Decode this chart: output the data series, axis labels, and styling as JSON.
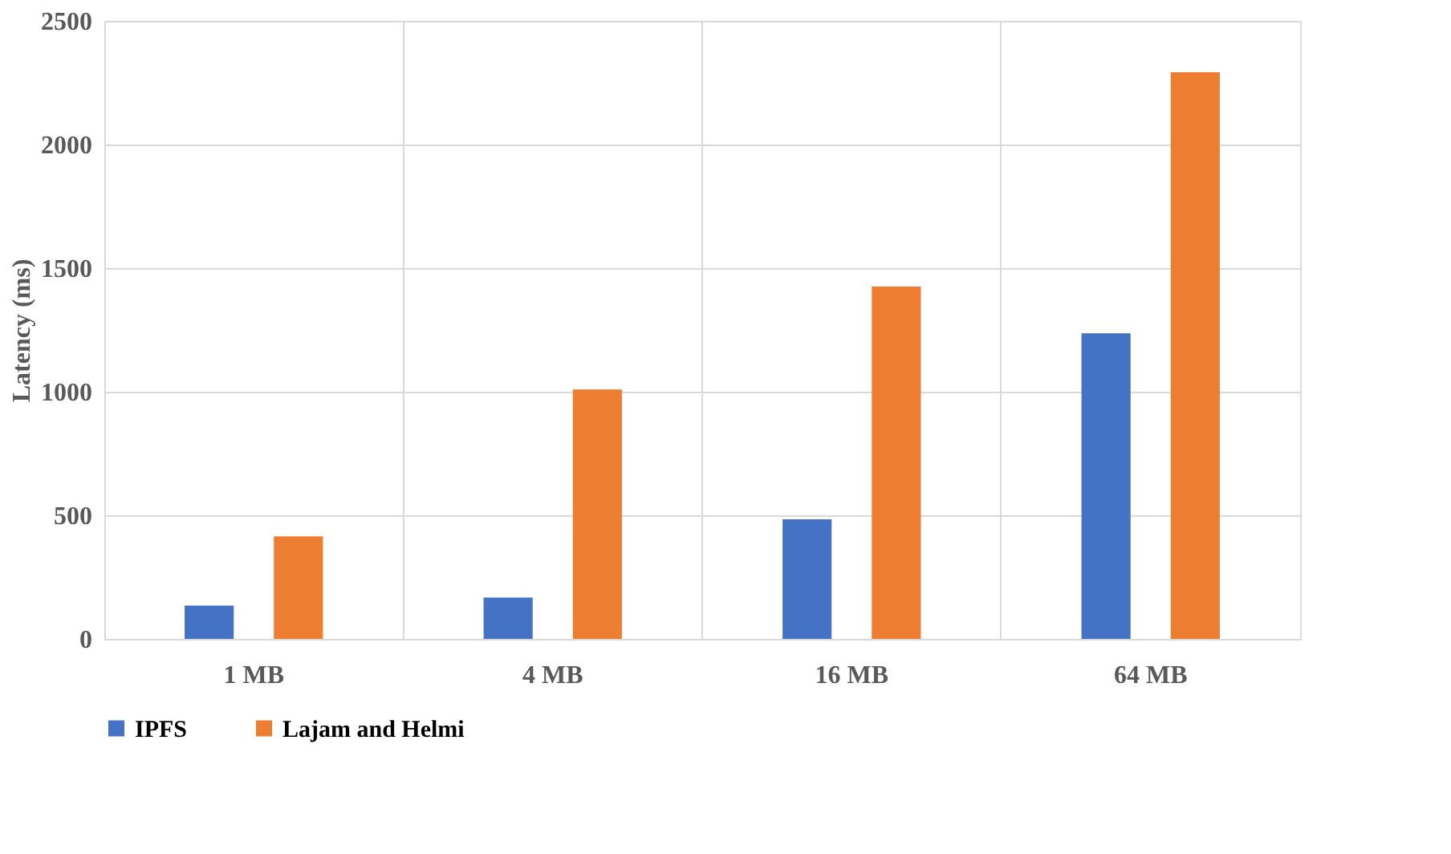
{
  "chart_data": {
    "type": "bar",
    "ylabel": "Latency (ms)",
    "categories": [
      "1 MB",
      "4 MB",
      "16 MB",
      "64 MB"
    ],
    "series": [
      {
        "name": "IPFS",
        "color": "#4472c4",
        "values": [
          135,
          167,
          484,
          1236
        ]
      },
      {
        "name": "Lajam and Helmi",
        "color": "#ed7d31",
        "values": [
          415,
          1009,
          1425,
          2292
        ]
      }
    ],
    "ylim": [
      0,
      2500
    ],
    "yticks": [
      0,
      500,
      1000,
      1500,
      2000,
      2500
    ],
    "grid": true,
    "legend": "bottom"
  }
}
